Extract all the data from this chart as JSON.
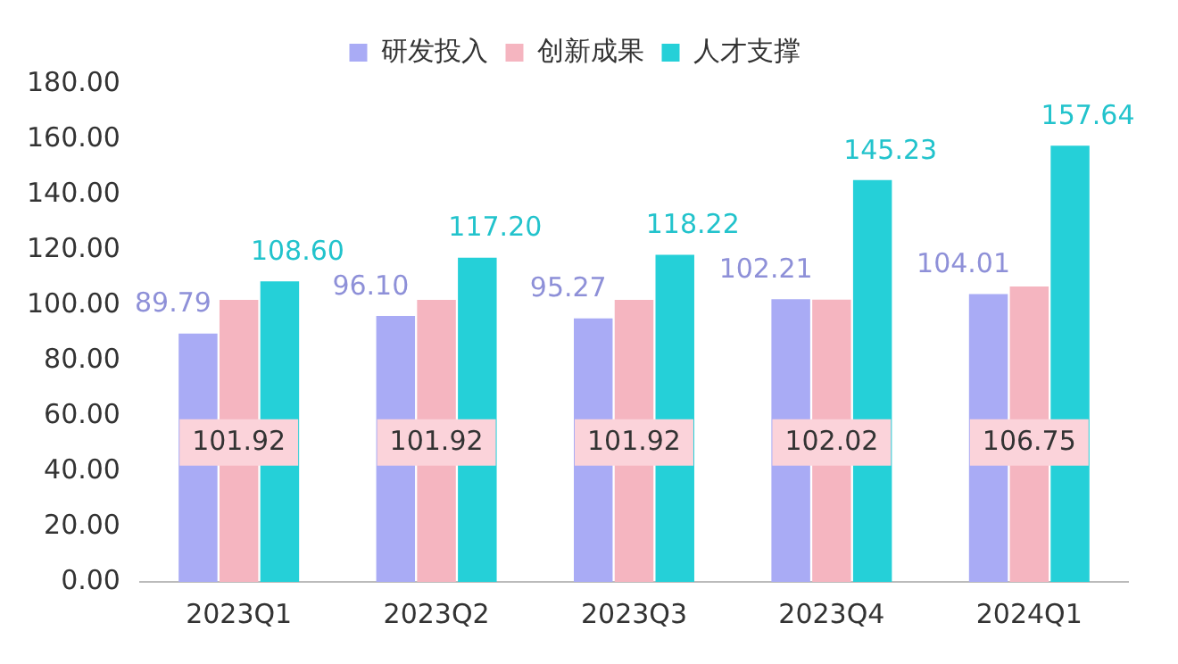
{
  "chart_data": {
    "type": "bar",
    "categories": [
      "2023Q1",
      "2023Q2",
      "2023Q3",
      "2023Q4",
      "2024Q1"
    ],
    "series": [
      {
        "name": "研发投入",
        "color": "#a9abf5",
        "values": [
          89.79,
          96.1,
          95.27,
          102.21,
          104.01
        ],
        "value_labels": [
          "89.79",
          "96.10",
          "95.27",
          "102.21",
          "104.01"
        ]
      },
      {
        "name": "创新成果",
        "color": "#f5b5c0",
        "values": [
          101.92,
          101.92,
          101.92,
          102.02,
          106.75
        ],
        "value_labels": [
          "101.92",
          "101.92",
          "101.92",
          "102.02",
          "106.75"
        ]
      },
      {
        "name": "人才支撑",
        "color": "#25d0d8",
        "values": [
          108.6,
          117.2,
          118.22,
          145.23,
          157.64
        ],
        "value_labels": [
          "108.60",
          "117.20",
          "118.22",
          "145.23",
          "157.64"
        ]
      }
    ],
    "ylim": [
      0,
      180
    ],
    "yticks": [
      {
        "value": 0,
        "label": "0.00"
      },
      {
        "value": 20,
        "label": "20.00"
      },
      {
        "value": 40,
        "label": "40.00"
      },
      {
        "value": 60,
        "label": "60.00"
      },
      {
        "value": 80,
        "label": "80.00"
      },
      {
        "value": 100,
        "label": "100.00"
      },
      {
        "value": 120,
        "label": "120.00"
      },
      {
        "value": 140,
        "label": "140.00"
      },
      {
        "value": 160,
        "label": "160.00"
      },
      {
        "value": 180,
        "label": "180.00"
      }
    ],
    "grid": false,
    "legend": "top"
  }
}
